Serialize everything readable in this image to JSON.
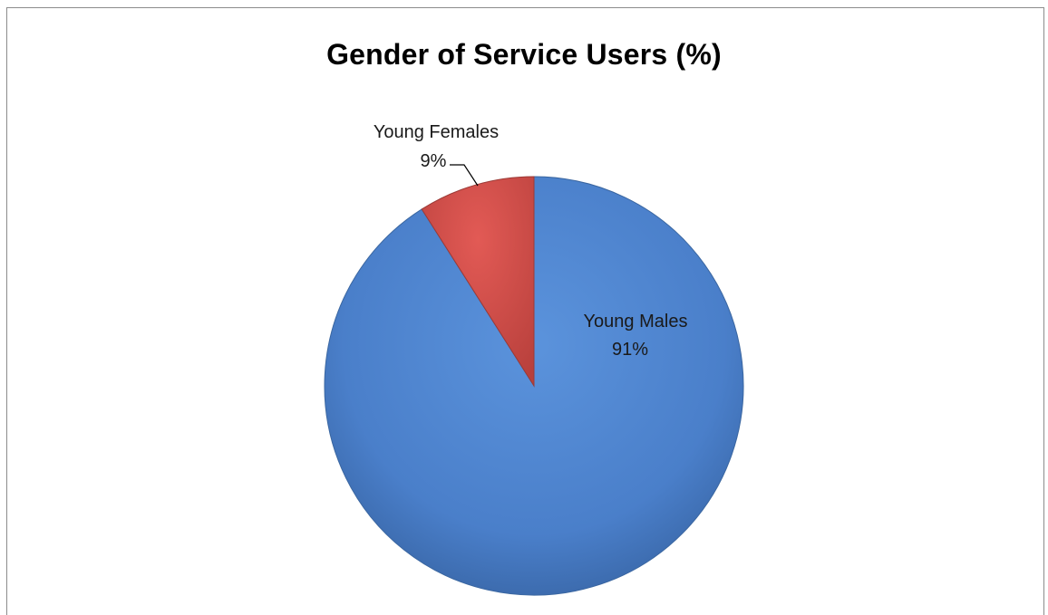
{
  "chart_data": {
    "type": "pie",
    "title": "Gender of Service Users (%)",
    "categories": [
      "Young Males",
      "Young Females"
    ],
    "values": [
      91,
      9
    ],
    "value_labels": [
      "91%",
      "9%"
    ],
    "colors": [
      "#4a7ebb",
      "#c0504d"
    ],
    "legend": "none",
    "data_labels": "category name and percentage"
  }
}
